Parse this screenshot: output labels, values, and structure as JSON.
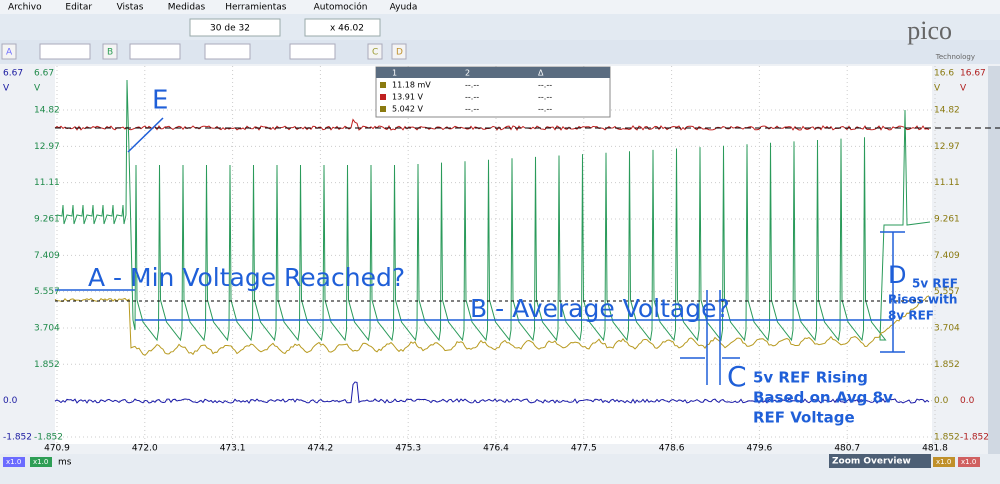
{
  "menu": [
    "Archivo",
    "Editar",
    "Vistas",
    "Medidas",
    "Herramientas",
    "Automoción",
    "Ayuda"
  ],
  "toolbar": {
    "capture": "30 de 32",
    "zoom": "x 46.02"
  },
  "channels": [
    "A",
    "B",
    "C",
    "D"
  ],
  "logo": {
    "name": "pico",
    "tagline": "Technology"
  },
  "axes": {
    "left_blue": [
      "6.67",
      "V",
      "0.0",
      "-1.852"
    ],
    "left_green": [
      "6.67",
      "V",
      "14.82",
      "12.97",
      "11.11",
      "9.261",
      "7.409",
      "5.557",
      "3.704",
      "1.852",
      "-1.852"
    ],
    "right_gold": [
      "16.6",
      "V",
      "14.82",
      "12.97",
      "11.11",
      "9.261",
      "7.409",
      "5.557",
      "3.704",
      "1.852",
      "0.0",
      "1.852"
    ],
    "right_red": [
      "16.67",
      "V",
      "0.0",
      "-1.852"
    ],
    "x": [
      "470.9",
      "472.0",
      "473.1",
      "474.2",
      "475.3",
      "476.4",
      "477.5",
      "478.6",
      "479.6",
      "480.7",
      "481.8"
    ],
    "x_unit": "ms"
  },
  "measurements": {
    "header": [
      "1",
      "2",
      "Δ"
    ],
    "rows": [
      [
        "11.18 mV",
        "--.--",
        "--.--"
      ],
      [
        "13.91 V",
        "--.--",
        "--.--"
      ],
      [
        "5.042 V",
        "--.--",
        "--.--"
      ]
    ]
  },
  "annotations": {
    "e": "E",
    "a": "A - Min Voltage Reached?",
    "b": "B - Average Voltage?",
    "c": "C",
    "c_note": [
      "5v REF Rising",
      "Based on Avg 8v",
      "REF Voltage"
    ],
    "d": "D",
    "d_note": [
      "5v REF",
      "Rises with",
      "8v REF"
    ]
  },
  "footer": {
    "scale": "x1.0",
    "zoom_overview": "Zoom Overview"
  }
}
